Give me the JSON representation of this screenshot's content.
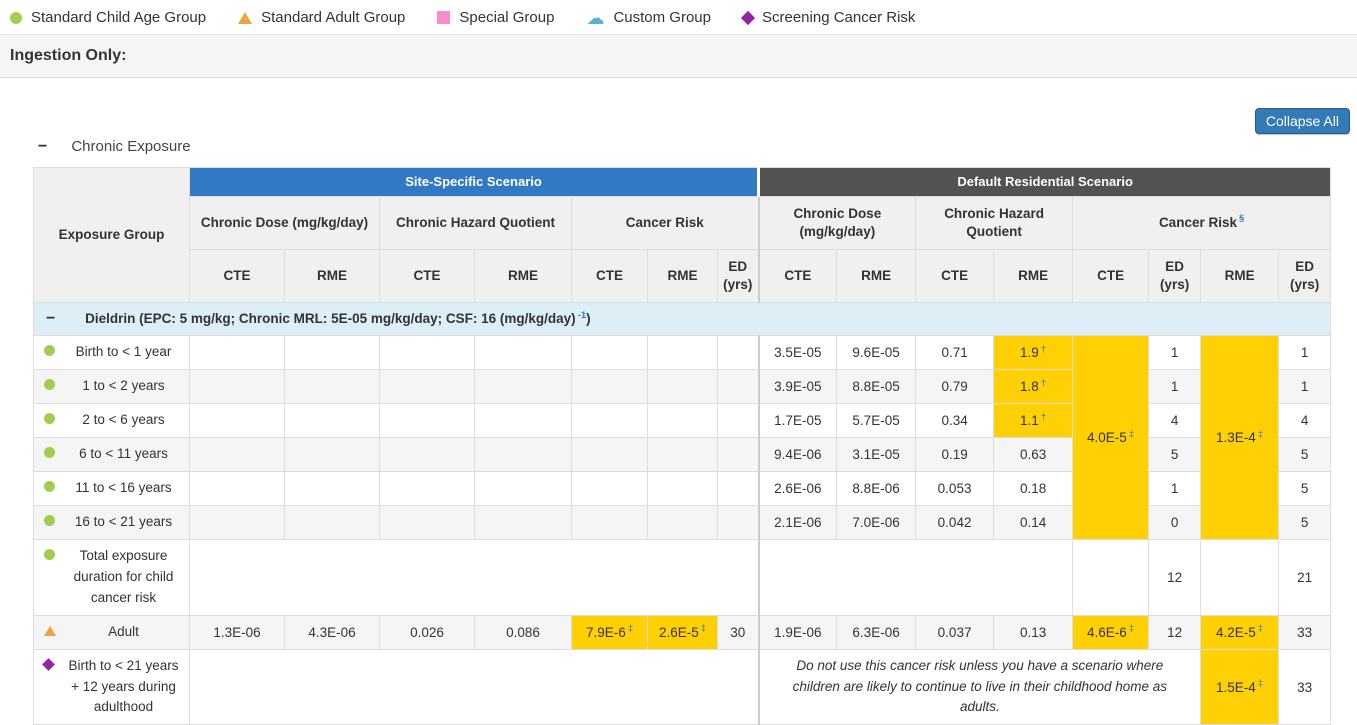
{
  "colors": {
    "child": "#a0ce4e",
    "adult": "#f0a33c",
    "special": "#f98cc8",
    "custom": "#56b0d8",
    "screening": "#9623a5",
    "highlight": "#ffd105",
    "site_header": "#3279c4",
    "default_header": "#525252",
    "sup": "#337ab7",
    "chem_row": "#ddeef7",
    "button_bg": "#337ab7",
    "button_border": "#265a88"
  },
  "legend": {
    "items": [
      {
        "label": "Standard Child Age Group",
        "icon": "circle"
      },
      {
        "label": "Standard Adult Group",
        "icon": "triangle"
      },
      {
        "label": "Special Group",
        "icon": "square"
      },
      {
        "label": "Custom Group",
        "icon": "cloud"
      },
      {
        "label": "Screening Cancer Risk",
        "icon": "diamond"
      }
    ]
  },
  "section": {
    "title": "Ingestion Only:"
  },
  "toolbar": {
    "collapse_all": "Collapse All"
  },
  "chronic": {
    "collapse_icon": "−",
    "title": "Chronic Exposure"
  },
  "table": {
    "exposure_group_header": "Exposure Group",
    "scenarios": {
      "site": "Site-Specific Scenario",
      "default": "Default Residential Scenario"
    },
    "group_headers": [
      "Chronic Dose (mg/kg/day)",
      "Chronic Hazard Quotient",
      "Cancer Risk",
      "Chronic Dose (mg/kg/day)",
      "Chronic Hazard Quotient",
      "Cancer Risk"
    ],
    "cancer_risk_sup": "§",
    "col_headers": [
      "CTE",
      "RME",
      "CTE",
      "RME",
      "CTE",
      "RME",
      "ED (yrs)",
      "CTE",
      "RME",
      "CTE",
      "RME",
      "CTE",
      "ED (yrs)",
      "RME",
      "ED (yrs)"
    ],
    "chemical": {
      "collapse_icon": "−",
      "label_main": "Dieldrin (EPC: 5 mg/kg; Chronic MRL: 5E-05 mg/kg/day; CSF: 16 (mg/kg/day)",
      "label_sup": "-1",
      "label_end": ")"
    },
    "rows": [
      {
        "icon": "circle",
        "label": "Birth to < 1 year",
        "cells": [
          {},
          {},
          {},
          {},
          {},
          {},
          {},
          {
            "t": "3.5E-05",
            "split": true
          },
          {
            "t": "9.6E-05"
          },
          {
            "t": "0.71"
          },
          {
            "t": "1.9",
            "sup": "†",
            "hl": true
          },
          {
            "t": "4.0E-5",
            "sup": "‡",
            "hl": true,
            "rowspan": 6
          },
          {
            "t": "1"
          },
          {
            "t": "1.3E-4",
            "sup": "‡",
            "hl": true,
            "rowspan": 6
          },
          {
            "t": "1"
          }
        ]
      },
      {
        "icon": "circle",
        "label": "1 to < 2 years",
        "cells": [
          {},
          {},
          {},
          {},
          {},
          {},
          {},
          {
            "t": "3.9E-05",
            "split": true
          },
          {
            "t": "8.8E-05"
          },
          {
            "t": "0.79"
          },
          {
            "t": "1.8",
            "sup": "†",
            "hl": true
          },
          {
            "t": "1"
          },
          {
            "t": "1"
          }
        ]
      },
      {
        "icon": "circle",
        "label": "2 to < 6 years",
        "cells": [
          {},
          {},
          {},
          {},
          {},
          {},
          {},
          {
            "t": "1.7E-05",
            "split": true
          },
          {
            "t": "5.7E-05"
          },
          {
            "t": "0.34"
          },
          {
            "t": "1.1",
            "sup": "†",
            "hl": true
          },
          {
            "t": "4"
          },
          {
            "t": "4"
          }
        ]
      },
      {
        "icon": "circle",
        "label": "6 to < 11 years",
        "cells": [
          {},
          {},
          {},
          {},
          {},
          {},
          {},
          {
            "t": "9.4E-06",
            "split": true
          },
          {
            "t": "3.1E-05"
          },
          {
            "t": "0.19"
          },
          {
            "t": "0.63"
          },
          {
            "t": "5"
          },
          {
            "t": "5"
          }
        ]
      },
      {
        "icon": "circle",
        "label": "11 to < 16 years",
        "cells": [
          {},
          {},
          {},
          {},
          {},
          {},
          {},
          {
            "t": "2.6E-06",
            "split": true
          },
          {
            "t": "8.8E-06"
          },
          {
            "t": "0.053"
          },
          {
            "t": "0.18"
          },
          {
            "t": "1"
          },
          {
            "t": "5"
          }
        ]
      },
      {
        "icon": "circle",
        "label": "16 to < 21 years",
        "cells": [
          {},
          {},
          {},
          {},
          {},
          {},
          {},
          {
            "t": "2.1E-06",
            "split": true
          },
          {
            "t": "7.0E-06"
          },
          {
            "t": "0.042"
          },
          {
            "t": "0.14"
          },
          {
            "t": "0"
          },
          {
            "t": "5"
          }
        ]
      },
      {
        "icon": "circle",
        "label": "Total exposure duration for child cancer risk",
        "cells": [
          {
            "colspan": 7
          },
          {
            "colspan": 4,
            "split": true
          },
          {},
          {
            "t": "12"
          },
          {},
          {
            "t": "21"
          }
        ]
      },
      {
        "icon": "triangle",
        "label": "Adult",
        "cells": [
          {
            "t": "1.3E-06"
          },
          {
            "t": "4.3E-06"
          },
          {
            "t": "0.026"
          },
          {
            "t": "0.086"
          },
          {
            "t": "7.9E-6",
            "sup": "‡",
            "hl": true
          },
          {
            "t": "2.6E-5",
            "sup": "‡",
            "hl": true
          },
          {
            "t": "30"
          },
          {
            "t": "1.9E-06",
            "split": true
          },
          {
            "t": "6.3E-06"
          },
          {
            "t": "0.037"
          },
          {
            "t": "0.13"
          },
          {
            "t": "4.6E-6",
            "sup": "‡",
            "hl": true
          },
          {
            "t": "12"
          },
          {
            "t": "4.2E-5",
            "sup": "‡",
            "hl": true
          },
          {
            "t": "33"
          }
        ]
      },
      {
        "icon": "diamond",
        "label": "Birth to < 21 years + 12 years during adulthood",
        "cells": [
          {
            "colspan": 7
          },
          {
            "t": "Do not use this cancer risk unless you have a scenario where children are likely to continue to live in their childhood home as adults.",
            "colspan": 6,
            "italic": true,
            "split": true
          },
          {
            "t": "1.5E-4",
            "sup": "‡",
            "hl": true
          },
          {
            "t": "33"
          }
        ]
      }
    ]
  }
}
